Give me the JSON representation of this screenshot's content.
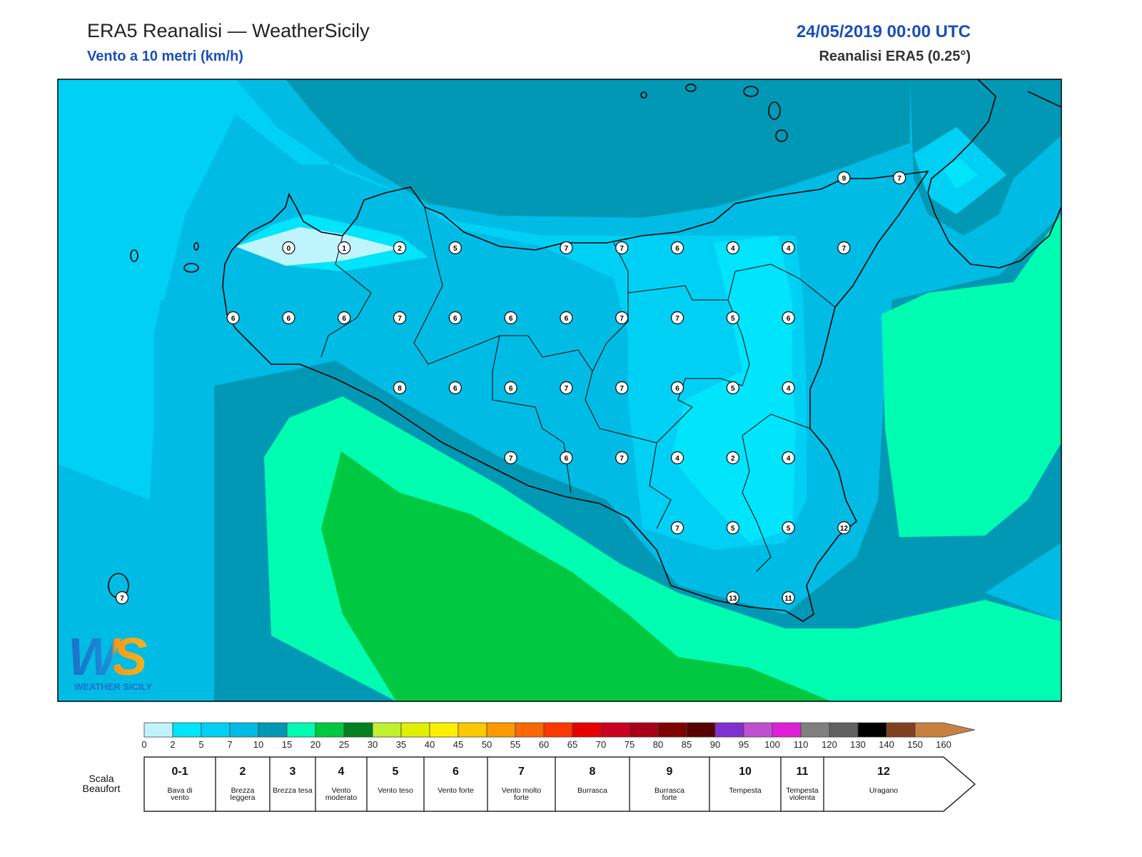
{
  "header": {
    "title": "ERA5 Reanalisi — WeatherSicily",
    "subtitle": "Vento a 10 metri (km/h)",
    "datetime": "24/05/2019 00:00 UTC",
    "source": "Reanalisi ERA5 (0.25°)"
  },
  "stations": [
    [
      null,
      null,
      null,
      null,
      null,
      null,
      null,
      null,
      null,
      null,
      null,
      null,
      null,
      9,
      7
    ],
    [
      null,
      null,
      null,
      0,
      1,
      2,
      5,
      null,
      7,
      7,
      6,
      4,
      4,
      7,
      null
    ],
    [
      null,
      null,
      6,
      6,
      6,
      7,
      6,
      6,
      6,
      7,
      7,
      5,
      6,
      null,
      null
    ],
    [
      null,
      null,
      null,
      null,
      null,
      8,
      6,
      6,
      7,
      7,
      6,
      5,
      4,
      null,
      null
    ],
    [
      null,
      null,
      null,
      null,
      null,
      null,
      null,
      7,
      6,
      7,
      4,
      2,
      4,
      null,
      null
    ],
    [
      null,
      null,
      null,
      null,
      null,
      null,
      null,
      null,
      null,
      null,
      7,
      5,
      5,
      12,
      null
    ],
    [
      7,
      null,
      null,
      null,
      null,
      null,
      null,
      null,
      null,
      null,
      null,
      13,
      11,
      null,
      null
    ]
  ],
  "colorbar": {
    "ticks": [
      0,
      2,
      5,
      7,
      10,
      15,
      20,
      25,
      30,
      35,
      40,
      45,
      50,
      55,
      60,
      65,
      70,
      75,
      80,
      85,
      90,
      95,
      100,
      110,
      120,
      130,
      140,
      150,
      160
    ],
    "colors": [
      "#c0f4fc",
      "#00e4fc",
      "#00d0f4",
      "#00bce4",
      "#0098b4",
      "#00fcb0",
      "#00c840",
      "#008020",
      "#c0f030",
      "#e0f000",
      "#fcf000",
      "#fcc800",
      "#fc9800",
      "#fc6800",
      "#fc3800",
      "#e80000",
      "#cc0020",
      "#a80018",
      "#800000",
      "#580000",
      "#8030d0",
      "#c050d0",
      "#e020d8",
      "#808080",
      "#606060",
      "#000000",
      "#804020",
      "#c88040"
    ]
  },
  "beaufort": {
    "label": "Scala Beaufort",
    "scale": [
      {
        "force": "0-1",
        "description": "Bava di vento"
      },
      {
        "force": "2",
        "description": "Brezza leggera"
      },
      {
        "force": "3",
        "description": "Brezza tesa"
      },
      {
        "force": "4",
        "description": "Vento moderato"
      },
      {
        "force": "5",
        "description": "Vento teso"
      },
      {
        "force": "6",
        "description": "Vento forte"
      },
      {
        "force": "7",
        "description": "Vento molto forte"
      },
      {
        "force": "8",
        "description": "Burrasca"
      },
      {
        "force": "9",
        "description": "Burrasca forte"
      },
      {
        "force": "10",
        "description": "Tempesta"
      },
      {
        "force": "11",
        "description": "Tempesta violenta"
      },
      {
        "force": "12",
        "description": "Uragano"
      }
    ]
  },
  "logo": {
    "mark": "WS",
    "name": "WEATHER SICILY"
  }
}
